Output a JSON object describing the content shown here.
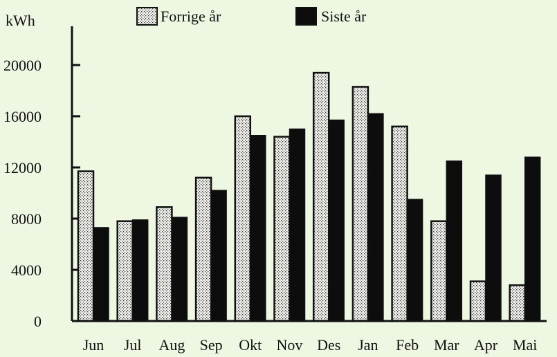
{
  "colors": {
    "background": "#edf7e2",
    "axis": "#111111",
    "forrige_fill": "#f4f4ee",
    "forrige_dots": "#333333",
    "siste_fill": "#0d0d0d"
  },
  "chart_data": {
    "type": "bar",
    "title": "",
    "ylabel": "kWh",
    "xlabel": "",
    "ylim": [
      0,
      22000
    ],
    "yticks": [
      0,
      4000,
      8000,
      12000,
      16000,
      20000
    ],
    "categories": [
      "Jun",
      "Jul",
      "Aug",
      "Sep",
      "Okt",
      "Nov",
      "Des",
      "Jan",
      "Feb",
      "Mar",
      "Apr",
      "Mai"
    ],
    "series": [
      {
        "name": "Forrige år",
        "pattern": "dotted",
        "values": [
          11700,
          7800,
          8900,
          11200,
          16000,
          14400,
          19400,
          18300,
          15200,
          7800,
          3100,
          2800
        ]
      },
      {
        "name": "Siste år",
        "pattern": "solid-black",
        "values": [
          7300,
          7900,
          8100,
          10200,
          14500,
          15000,
          15700,
          16200,
          9500,
          12500,
          11400,
          12800
        ]
      }
    ],
    "legend_position": "top",
    "grid": false
  }
}
